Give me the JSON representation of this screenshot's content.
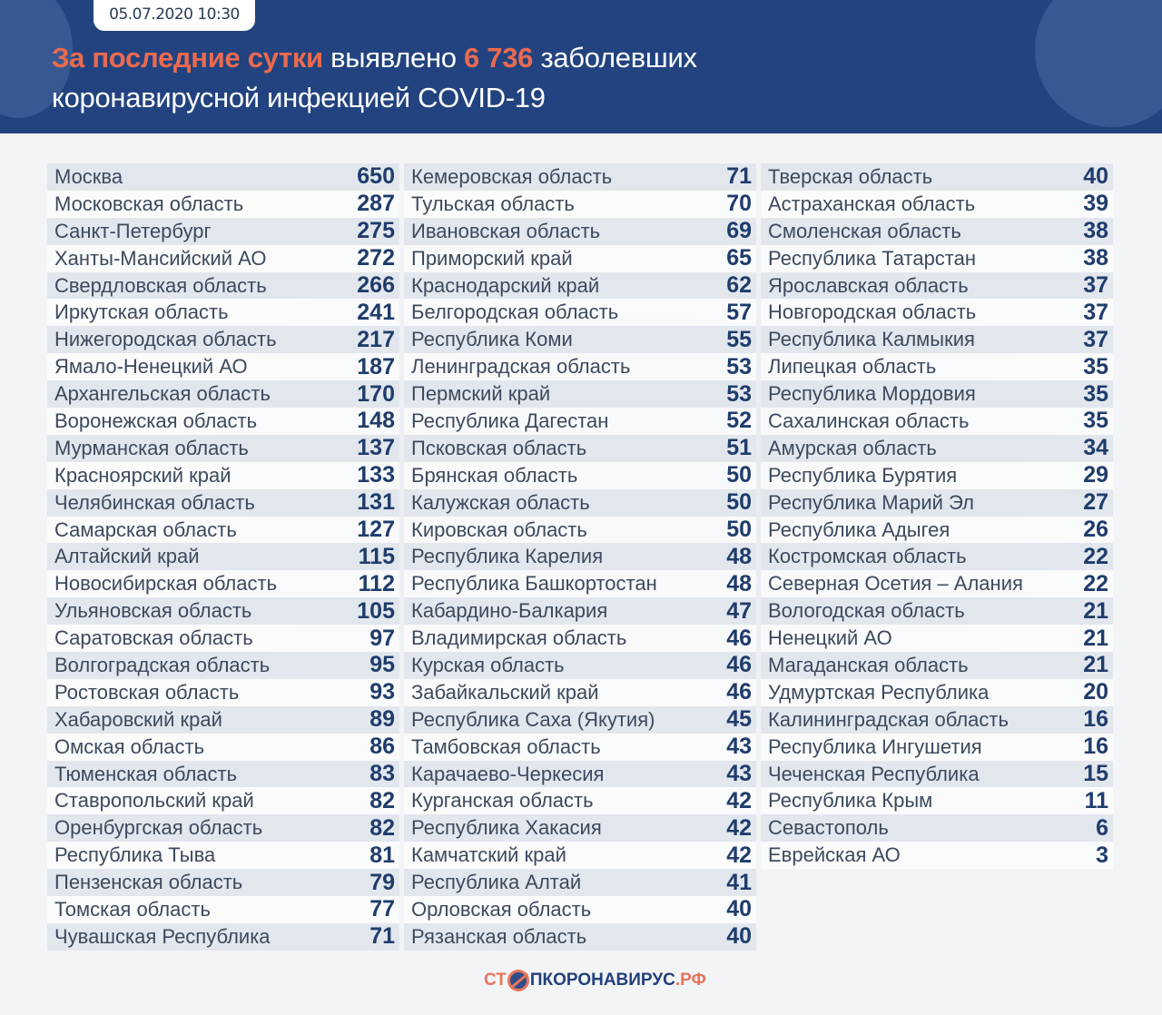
{
  "header": {
    "date": "05.07.2020 10:30",
    "title_hl1": "За последние сутки",
    "title_t1": " выявлено ",
    "title_hl2": "6 736",
    "title_t2": " заболевших",
    "title_line2": "коронавирусной инфекцией COVID-19"
  },
  "colors": {
    "header_bg": "#22437f",
    "accent": "#ea6a50",
    "number": "#1f3c6c"
  },
  "columns": [
    [
      [
        "Москва",
        "650"
      ],
      [
        "Московская область",
        "287"
      ],
      [
        "Санкт-Петербург",
        "275"
      ],
      [
        "Ханты-Мансийский АО",
        "272"
      ],
      [
        "Свердловская область",
        "266"
      ],
      [
        "Иркутская область",
        "241"
      ],
      [
        "Нижегородская область",
        "217"
      ],
      [
        "Ямало-Ненецкий АО",
        "187"
      ],
      [
        "Архангельская область",
        "170"
      ],
      [
        "Воронежская область",
        "148"
      ],
      [
        "Мурманская область",
        "137"
      ],
      [
        "Красноярский край",
        "133"
      ],
      [
        "Челябинская область",
        "131"
      ],
      [
        "Самарская область",
        "127"
      ],
      [
        "Алтайский край",
        "115"
      ],
      [
        "Новосибирская область",
        "112"
      ],
      [
        "Ульяновская область",
        "105"
      ],
      [
        "Саратовская область",
        "97"
      ],
      [
        "Волгоградская область",
        "95"
      ],
      [
        "Ростовская область",
        "93"
      ],
      [
        "Хабаровский край",
        "89"
      ],
      [
        "Омская область",
        "86"
      ],
      [
        "Тюменская область",
        "83"
      ],
      [
        "Ставропольский край",
        "82"
      ],
      [
        "Оренбургская область",
        "82"
      ],
      [
        "Республика Тыва",
        "81"
      ],
      [
        "Пензенская область",
        "79"
      ],
      [
        "Томская область",
        "77"
      ],
      [
        "Чувашская Республика",
        "71"
      ]
    ],
    [
      [
        "Кемеровская область",
        "71"
      ],
      [
        "Тульская область",
        "70"
      ],
      [
        "Ивановская область",
        "69"
      ],
      [
        "Приморский край",
        "65"
      ],
      [
        "Краснодарский край",
        "62"
      ],
      [
        "Белгородская область",
        "57"
      ],
      [
        "Республика Коми",
        "55"
      ],
      [
        "Ленинградская область",
        "53"
      ],
      [
        "Пермский край",
        "53"
      ],
      [
        "Республика Дагестан",
        "52"
      ],
      [
        "Псковская область",
        "51"
      ],
      [
        "Брянская область",
        "50"
      ],
      [
        "Калужская область",
        "50"
      ],
      [
        "Кировская область",
        "50"
      ],
      [
        "Республика Карелия",
        "48"
      ],
      [
        "Республика Башкортостан",
        "48"
      ],
      [
        "Кабардино-Балкария",
        "47"
      ],
      [
        "Владимирская область",
        "46"
      ],
      [
        "Курская область",
        "46"
      ],
      [
        "Забайкальский край",
        "46"
      ],
      [
        "Республика Саха (Якутия)",
        "45"
      ],
      [
        "Тамбовская область",
        "43"
      ],
      [
        "Карачаево-Черкесия",
        "43"
      ],
      [
        "Курганская область",
        "42"
      ],
      [
        "Республика Хакасия",
        "42"
      ],
      [
        "Камчатский край",
        "42"
      ],
      [
        "Республика Алтай",
        "41"
      ],
      [
        "Орловская область",
        "40"
      ],
      [
        "Рязанская область",
        "40"
      ]
    ],
    [
      [
        "Тверская область",
        "40"
      ],
      [
        "Астраханская область",
        "39"
      ],
      [
        "Смоленская область",
        "38"
      ],
      [
        "Республика Татарстан",
        "38"
      ],
      [
        "Ярославская область",
        "37"
      ],
      [
        "Новгородская область",
        "37"
      ],
      [
        "Республика Калмыкия",
        "37"
      ],
      [
        "Липецкая область",
        "35"
      ],
      [
        "Республика Мордовия",
        "35"
      ],
      [
        "Сахалинская область",
        "35"
      ],
      [
        "Амурская область",
        "34"
      ],
      [
        "Республика Бурятия",
        "29"
      ],
      [
        "Республика Марий Эл",
        "27"
      ],
      [
        "Республика Адыгея",
        "26"
      ],
      [
        "Костромская область",
        "22"
      ],
      [
        "Северная Осетия – Алания",
        "22"
      ],
      [
        "Вологодская область",
        "21"
      ],
      [
        "Ненецкий АО",
        "21"
      ],
      [
        "Магаданская область",
        "21"
      ],
      [
        "Удмуртская Республика",
        "20"
      ],
      [
        "Калининградская область",
        "16"
      ],
      [
        "Республика Ингушетия",
        "16"
      ],
      [
        "Чеченская Республика",
        "15"
      ],
      [
        "Республика Крым",
        "11"
      ],
      [
        "Севастополь",
        "6"
      ],
      [
        "Еврейская АО",
        "3"
      ]
    ]
  ],
  "footer": {
    "logo_a": "СТ",
    "logo_b": "ПКОРОНАВИРУС",
    "logo_c": ".РФ"
  }
}
